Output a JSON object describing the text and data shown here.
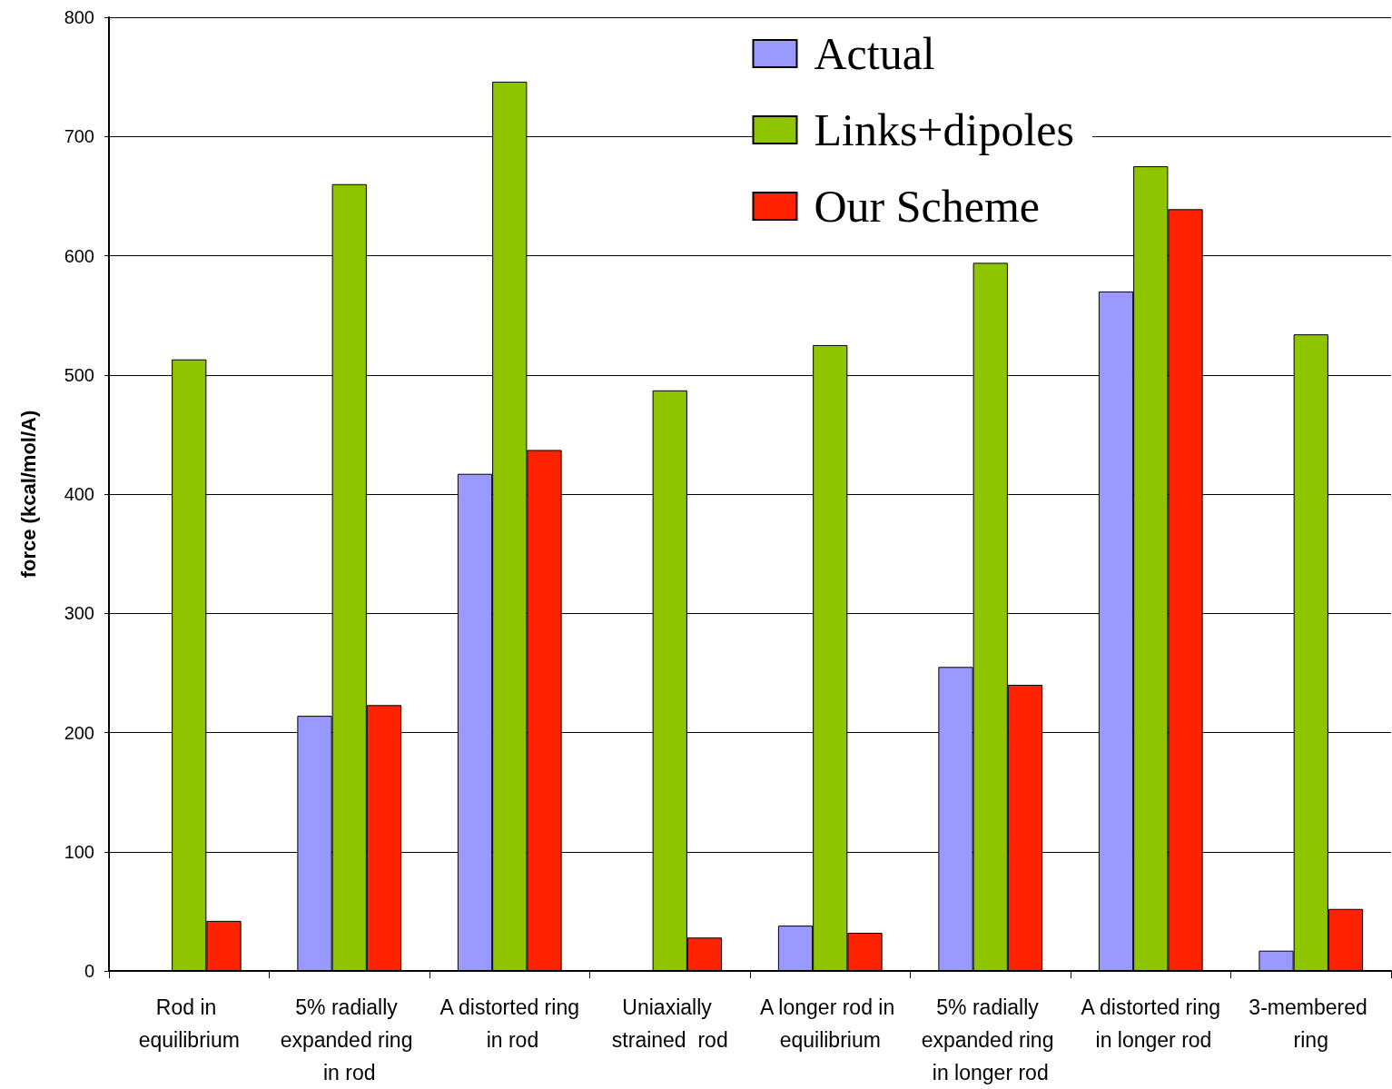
{
  "chart_data": {
    "type": "bar",
    "ylabel": "force (kcal/mol/A)",
    "categories": [
      "Rod in equilibrium",
      "5% radially expanded ring in rod",
      "A distorted ring in rod",
      "Uniaxially strained  rod",
      "A longer rod in equilibrium",
      "5% radially expanded ring in longer rod",
      "A distorted ring in longer rod",
      "3-membered ring"
    ],
    "series": [
      {
        "name": "Actual",
        "color": "#9999ff",
        "values": [
          null,
          214,
          417,
          null,
          38,
          255,
          570,
          17
        ]
      },
      {
        "name": "Links+dipoles",
        "color": "#8fc400",
        "values": [
          513,
          660,
          746,
          487,
          525,
          594,
          675,
          534
        ]
      },
      {
        "name": "Our Scheme",
        "color": "#ff2200",
        "values": [
          42,
          223,
          437,
          28,
          32,
          240,
          639,
          52
        ]
      }
    ],
    "ylim": [
      0,
      800
    ],
    "yticks": [
      0,
      100,
      200,
      300,
      400,
      500,
      600,
      700,
      800
    ],
    "grid": "y",
    "legend": "top right"
  }
}
